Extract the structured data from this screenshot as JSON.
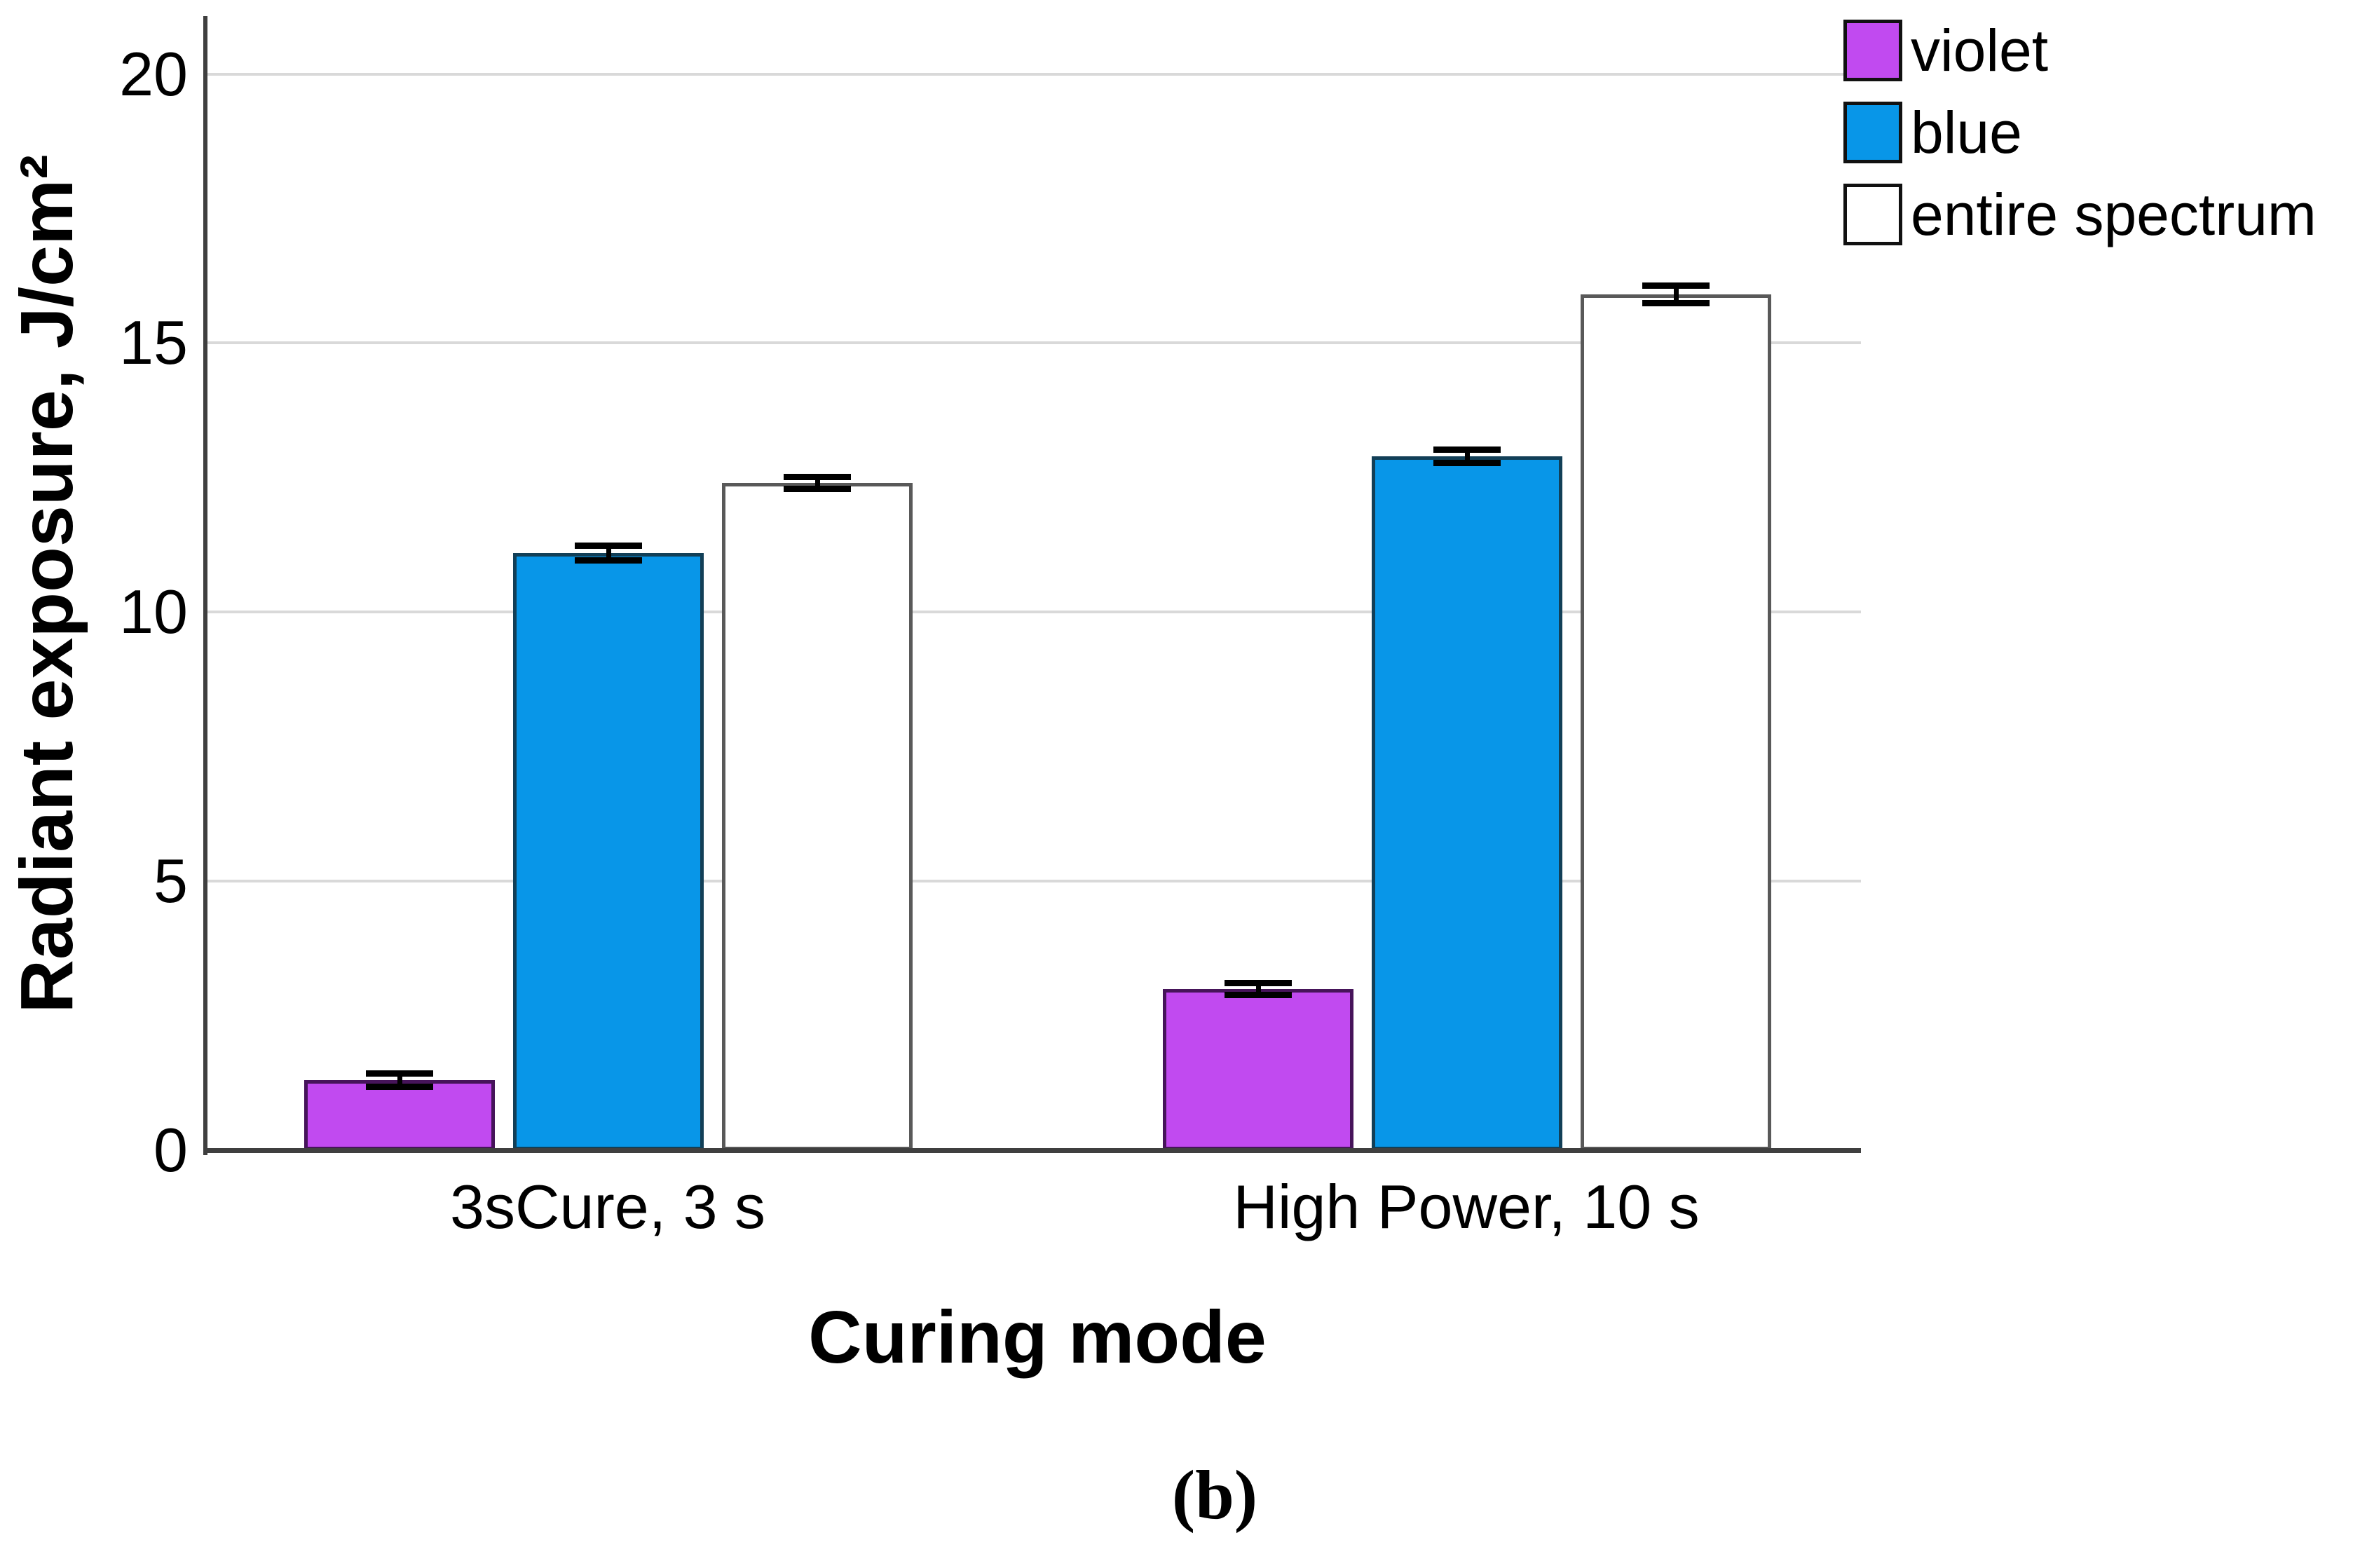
{
  "figure": {
    "caption": "(b)"
  },
  "chart_data": {
    "type": "bar",
    "title": "",
    "xlabel": "Curing mode",
    "ylabel": "Radiant exposure, J/cm²",
    "categories": [
      "3sCure, 3 s",
      "High Power, 10 s"
    ],
    "series": [
      {
        "name": "violet",
        "color": "#c14af0",
        "border_color": "#46145a",
        "values": [
          1.3,
          3.0
        ],
        "errors": [
          0.06,
          0.05
        ]
      },
      {
        "name": "blue",
        "color": "#0896e8",
        "border_color": "#123f57",
        "values": [
          11.1,
          12.9
        ],
        "errors": [
          0.08,
          0.07
        ]
      },
      {
        "name": "entire spectrum",
        "color": "#ffffff",
        "border_color": "#595959",
        "values": [
          12.4,
          15.9
        ],
        "errors": [
          0.05,
          0.1
        ]
      }
    ],
    "ylim": [
      0,
      21
    ],
    "y_ticks": [
      0,
      5,
      10,
      15,
      20
    ],
    "grid": "horizontal",
    "gridline_color": "#d9d9d9",
    "axis_color": "#3f3f3f",
    "error_bar_color": "#000000",
    "legend_position": "top-right"
  }
}
